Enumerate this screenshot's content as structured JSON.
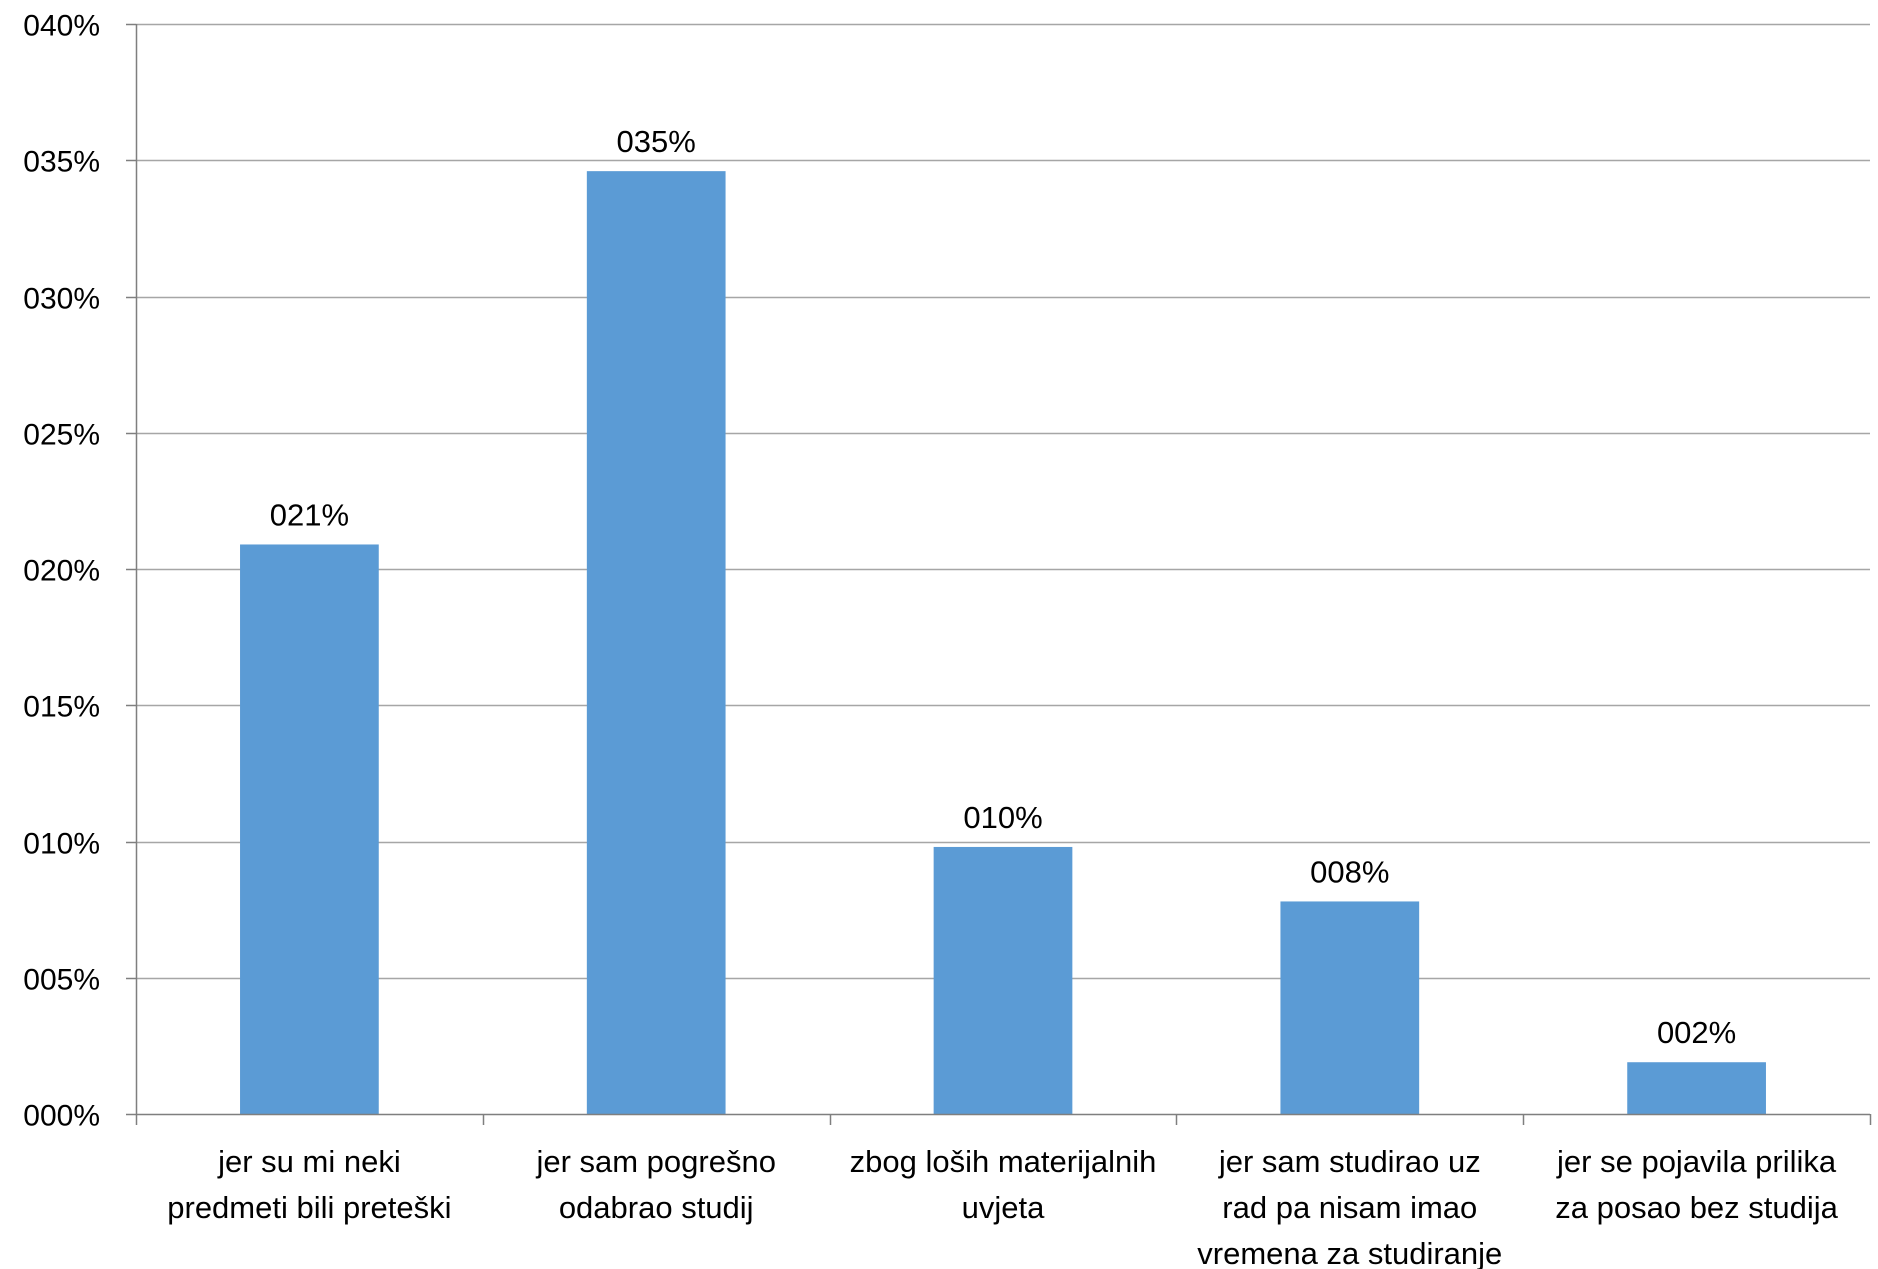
{
  "chart_data": {
    "type": "bar",
    "categories": [
      [
        "jer su mi neki",
        "predmeti bili preteški"
      ],
      [
        "jer sam pogrešno",
        "odabrao studij"
      ],
      [
        "zbog loših materijalnih",
        "uvjeta"
      ],
      [
        "jer sam studirao uz",
        "rad pa nisam imao",
        "vremena za studiranje"
      ],
      [
        "jer se pojavila prilika",
        "za posao bez studija"
      ]
    ],
    "values": [
      0.209,
      0.346,
      0.098,
      0.078,
      0.019
    ],
    "data_labels": [
      "021%",
      "035%",
      "010%",
      "008%",
      "002%"
    ],
    "ylim": [
      0,
      0.4
    ],
    "y_ticks": [
      0,
      0.05,
      0.1,
      0.15,
      0.2,
      0.25,
      0.3,
      0.35,
      0.4
    ],
    "y_tick_labels": [
      "000%",
      "005%",
      "010%",
      "015%",
      "020%",
      "025%",
      "030%",
      "035%",
      "040%"
    ],
    "title": "",
    "xlabel": "",
    "ylabel": "",
    "grid": true,
    "legend": "none",
    "bar_color": "#5B9BD5",
    "grid_color": "#A6A6A6",
    "axis_color": "#7F7F7F"
  }
}
